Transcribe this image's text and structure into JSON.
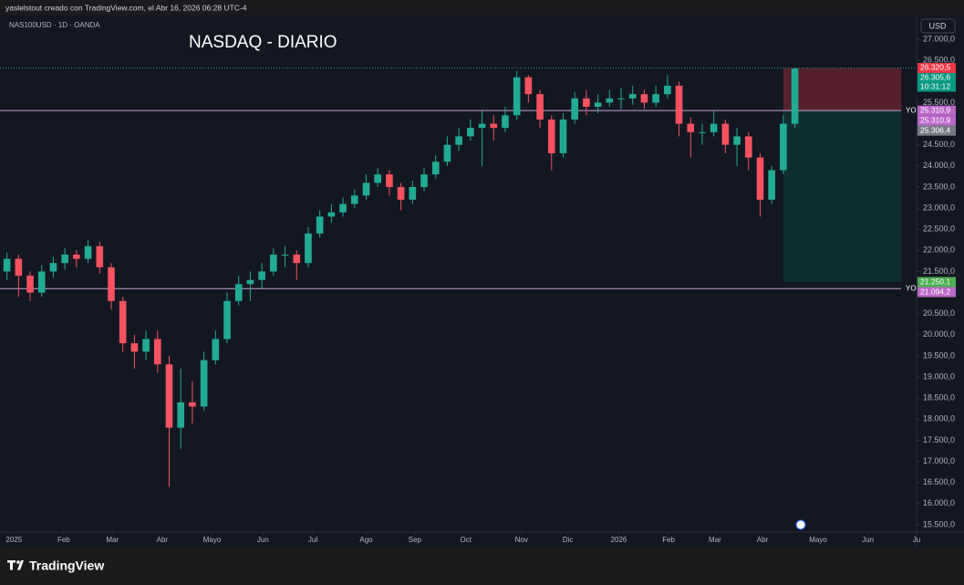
{
  "header": "yaslelstout creado con TradingView.com, el Abr 16, 2026 06:28 UTC-4",
  "brand": "TradingView",
  "chart_data": {
    "type": "candlestick",
    "symbol": "NAS100USD · 1D · OANDA",
    "title": "NASDAQ - DIARIO",
    "currency": "USD",
    "up_color": "#22ab94",
    "down_color": "#f7525f",
    "open": [
      21500,
      21800,
      21400,
      21000,
      21500,
      21700,
      21900,
      21800,
      22100,
      21600,
      20800,
      19800,
      19600,
      19900,
      19300,
      17800,
      18400,
      18300,
      19400,
      19900,
      20800,
      21200,
      21300,
      21500,
      21900,
      21900,
      21700,
      22400,
      22800,
      22900,
      23100,
      23300,
      23600,
      23800,
      23500,
      23200,
      23500,
      23800,
      24100,
      24500,
      24700,
      24900,
      25000,
      24900,
      25200,
      26100,
      25700,
      25100,
      24300,
      25100,
      25600,
      25400,
      25500,
      25600,
      25600,
      25700,
      25500,
      25700,
      25900,
      25000,
      24800,
      24800,
      25000,
      24500,
      24700,
      24200,
      23200,
      23900,
      25000
    ],
    "high": [
      21950,
      21900,
      21500,
      21650,
      21850,
      22050,
      22000,
      22250,
      22200,
      21700,
      20900,
      20000,
      20100,
      20100,
      19500,
      19200,
      18900,
      19600,
      20100,
      21000,
      21400,
      21500,
      21700,
      22050,
      22100,
      22000,
      22550,
      22950,
      23100,
      23250,
      23450,
      23800,
      23950,
      23900,
      23600,
      23650,
      23950,
      24250,
      24700,
      24900,
      25100,
      25300,
      25200,
      25400,
      26250,
      26150,
      25800,
      25200,
      25250,
      25750,
      25800,
      25700,
      25800,
      25850,
      25900,
      25800,
      25900,
      26150,
      26000,
      25150,
      25000,
      25300,
      25100,
      24900,
      24800,
      24300,
      24000,
      25200,
      26320.5
    ],
    "low": [
      21300,
      20900,
      20800,
      20900,
      21350,
      21550,
      21600,
      21700,
      21450,
      20600,
      19600,
      19200,
      19400,
      19100,
      16400,
      17300,
      17900,
      18200,
      19300,
      19800,
      20700,
      20800,
      21100,
      21400,
      21600,
      21300,
      21600,
      22300,
      22650,
      22800,
      23000,
      23200,
      23500,
      23300,
      22950,
      23100,
      23400,
      23700,
      24000,
      24350,
      24600,
      24000,
      24600,
      24800,
      25100,
      25500,
      24900,
      23900,
      24200,
      25000,
      25200,
      25250,
      25400,
      25350,
      25450,
      25350,
      25400,
      25600,
      24700,
      24200,
      24500,
      24700,
      24300,
      24000,
      23900,
      22800,
      23100,
      23800,
      24900
    ],
    "close": [
      21800,
      21400,
      21000,
      21500,
      21700,
      21900,
      21800,
      22100,
      21600,
      20800,
      19800,
      19600,
      19900,
      19300,
      17800,
      18400,
      18300,
      19400,
      19900,
      20800,
      21200,
      21300,
      21500,
      21900,
      21900,
      21700,
      22400,
      22800,
      22900,
      23100,
      23300,
      23600,
      23800,
      23500,
      23200,
      23500,
      23800,
      24100,
      24500,
      24700,
      24900,
      25000,
      24900,
      25200,
      26100,
      25700,
      25100,
      24300,
      25100,
      25600,
      25400,
      25500,
      25600,
      25600,
      25700,
      25500,
      25700,
      25900,
      25000,
      24800,
      24800,
      25000,
      24500,
      24700,
      24200,
      23200,
      23900,
      25000,
      26305.6
    ],
    "xlim": [
      -0.6,
      78.5
    ],
    "xticks": [
      {
        "value": 0.6,
        "label": "2025"
      },
      {
        "value": 4.9,
        "label": "Feb"
      },
      {
        "value": 9.1,
        "label": "Mar"
      },
      {
        "value": 13.4,
        "label": "Abr"
      },
      {
        "value": 17.7,
        "label": "Mayo"
      },
      {
        "value": 22.1,
        "label": "Jun"
      },
      {
        "value": 26.4,
        "label": "Jul"
      },
      {
        "value": 31.0,
        "label": "Ago"
      },
      {
        "value": 35.2,
        "label": "Sep"
      },
      {
        "value": 39.6,
        "label": "Oct"
      },
      {
        "value": 44.4,
        "label": "Nov"
      },
      {
        "value": 48.4,
        "label": "Dic"
      },
      {
        "value": 52.8,
        "label": "2026"
      },
      {
        "value": 57.1,
        "label": "Feb"
      },
      {
        "value": 61.1,
        "label": "Mar"
      },
      {
        "value": 65.2,
        "label": "Abr"
      },
      {
        "value": 70.0,
        "label": "Mayo"
      },
      {
        "value": 74.3,
        "label": "Jun"
      },
      {
        "value": 78.5,
        "label": "Ju"
      }
    ],
    "ylim": [
      15327,
      27563
    ],
    "yticks": [
      {
        "value": 15500,
        "label": "15.500,0"
      },
      {
        "value": 16000,
        "label": "16.000,0"
      },
      {
        "value": 16500,
        "label": "16.500,0"
      },
      {
        "value": 17000,
        "label": "17.000,0"
      },
      {
        "value": 17500,
        "label": "17.500,0"
      },
      {
        "value": 18000,
        "label": "18.000,0"
      },
      {
        "value": 18500,
        "label": "18.500,0"
      },
      {
        "value": 19000,
        "label": "19.000,0"
      },
      {
        "value": 19500,
        "label": "19.500,0"
      },
      {
        "value": 20000,
        "label": "20.000,0"
      },
      {
        "value": 20500,
        "label": "20.500,0"
      },
      {
        "value": 21000,
        "label": "21.000,0"
      },
      {
        "value": 21500,
        "label": "21.500,0"
      },
      {
        "value": 22000,
        "label": "22.000,0"
      },
      {
        "value": 22500,
        "label": "22.500,0"
      },
      {
        "value": 23000,
        "label": "23.000,0"
      },
      {
        "value": 23500,
        "label": "23.500,0"
      },
      {
        "value": 24000,
        "label": "24.000,0"
      },
      {
        "value": 24500,
        "label": "24.500,0"
      },
      {
        "value": 25000,
        "label": "25.000,0"
      },
      {
        "value": 25500,
        "label": "25.500,0"
      },
      {
        "value": 26000,
        "label": "26.000,0"
      },
      {
        "value": 26500,
        "label": "26.500,0"
      },
      {
        "value": 27000,
        "label": "27.000,0"
      }
    ],
    "grid": false,
    "hlines": [
      {
        "value": 25310.9,
        "label": "YO"
      },
      {
        "value": 21094.2,
        "label": "YO"
      }
    ],
    "position": {
      "start": 67,
      "end": 77.2,
      "entry": 25310.9,
      "stop": 26320.5,
      "target": 21250.1
    },
    "price_labels": [
      {
        "value": 26320.5,
        "label": "26.320,5",
        "color": "#f23645"
      },
      {
        "value": 26305.6,
        "label": "26.305,6",
        "color": "#089981"
      },
      {
        "value": 25310.9,
        "label": "25.310,9",
        "color": "#ba68c8"
      },
      {
        "value": 25310.9,
        "label": "25.310,9",
        "color": "#ba68c8"
      },
      {
        "value": 25306.4,
        "label": "25.306,4",
        "color": "#787b86"
      },
      {
        "value": 21250.1,
        "label": "21.250,1",
        "color": "#4caf50"
      },
      {
        "value": 21094.2,
        "label": "21.094,2",
        "color": "#ba68c8"
      }
    ],
    "countdown": "10:31:12"
  }
}
